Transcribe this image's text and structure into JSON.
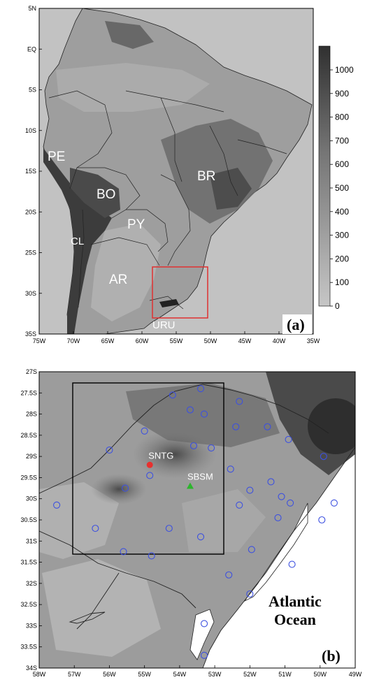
{
  "panel_a": {
    "tag": "(a)",
    "lat_ticks": [
      "5N",
      "EQ",
      "5S",
      "10S",
      "15S",
      "20S",
      "25S",
      "30S",
      "35S"
    ],
    "lon_ticks": [
      "75W",
      "70W",
      "65W",
      "60W",
      "55W",
      "50W",
      "45W",
      "40W",
      "35W"
    ],
    "country_labels": [
      "PE",
      "BO",
      "BR",
      "PY",
      "CL",
      "AR",
      "URU"
    ],
    "colorbar_ticks": [
      "1000",
      "900",
      "800",
      "700",
      "600",
      "500",
      "400",
      "300",
      "200",
      "100",
      "0"
    ],
    "colorbar_values": [
      1000,
      900,
      800,
      700,
      600,
      500,
      400,
      300,
      200,
      100,
      0
    ],
    "subdomain_box": {
      "lon": [
        -58,
        -50
      ],
      "lat": [
        -34,
        -27
      ]
    },
    "colors": {
      "box": "#e03030",
      "land": "#9a9a9a",
      "ocean": "#c2c2c2",
      "high": "#3a3a3a"
    }
  },
  "panel_b": {
    "tag": "(b)",
    "ocean_label": [
      "Atlantic",
      "Ocean"
    ],
    "lat_ticks": [
      "27S",
      "27.5S",
      "28S",
      "28.5S",
      "29S",
      "29.5S",
      "30S",
      "30.5S",
      "31S",
      "31.5S",
      "32S",
      "32.5S",
      "33S",
      "33.5S",
      "34S"
    ],
    "lon_ticks": [
      "58W",
      "57W",
      "56W",
      "55W",
      "54W",
      "53W",
      "52W",
      "51W",
      "50W",
      "49W"
    ],
    "stations": [
      {
        "name": "SNTG",
        "lon": -54.85,
        "lat": -29.2,
        "color": "#e8302e",
        "marker": "circle"
      },
      {
        "name": "SBSM",
        "lon": -53.7,
        "lat": -29.7,
        "color": "#2db52d",
        "marker": "triangle"
      }
    ],
    "inner_box": {
      "lon": [
        -57.0,
        -52.6
      ],
      "lat": [
        -31.35,
        -27.25
      ]
    },
    "colors": {
      "points": "#3c50e0",
      "box": "#000000"
    },
    "points": [
      [
        -53.4,
        -27.4
      ],
      [
        -54.2,
        -27.55
      ],
      [
        -52.3,
        -27.7
      ],
      [
        -53.7,
        -27.9
      ],
      [
        -53.3,
        -28.0
      ],
      [
        -55.0,
        -28.4
      ],
      [
        -52.4,
        -28.3
      ],
      [
        -51.5,
        -28.3
      ],
      [
        -50.9,
        -28.6
      ],
      [
        -56.0,
        -28.85
      ],
      [
        -53.6,
        -28.75
      ],
      [
        -53.1,
        -28.8
      ],
      [
        -49.9,
        -29.0
      ],
      [
        -52.55,
        -29.3
      ],
      [
        -54.85,
        -29.45
      ],
      [
        -51.4,
        -29.6
      ],
      [
        -52.0,
        -29.8
      ],
      [
        -55.55,
        -29.75
      ],
      [
        -51.1,
        -29.95
      ],
      [
        -50.85,
        -30.1
      ],
      [
        -49.6,
        -30.1
      ],
      [
        -57.5,
        -30.15
      ],
      [
        -52.3,
        -30.15
      ],
      [
        -51.2,
        -30.45
      ],
      [
        -49.95,
        -30.5
      ],
      [
        -56.4,
        -30.7
      ],
      [
        -54.3,
        -30.7
      ],
      [
        -53.4,
        -30.9
      ],
      [
        -55.6,
        -31.25
      ],
      [
        -54.8,
        -31.35
      ],
      [
        -51.95,
        -31.2
      ],
      [
        -50.8,
        -31.55
      ],
      [
        -52.6,
        -31.8
      ],
      [
        -52.0,
        -32.25
      ],
      [
        -53.3,
        -32.95
      ],
      [
        -53.3,
        -33.7
      ]
    ]
  }
}
